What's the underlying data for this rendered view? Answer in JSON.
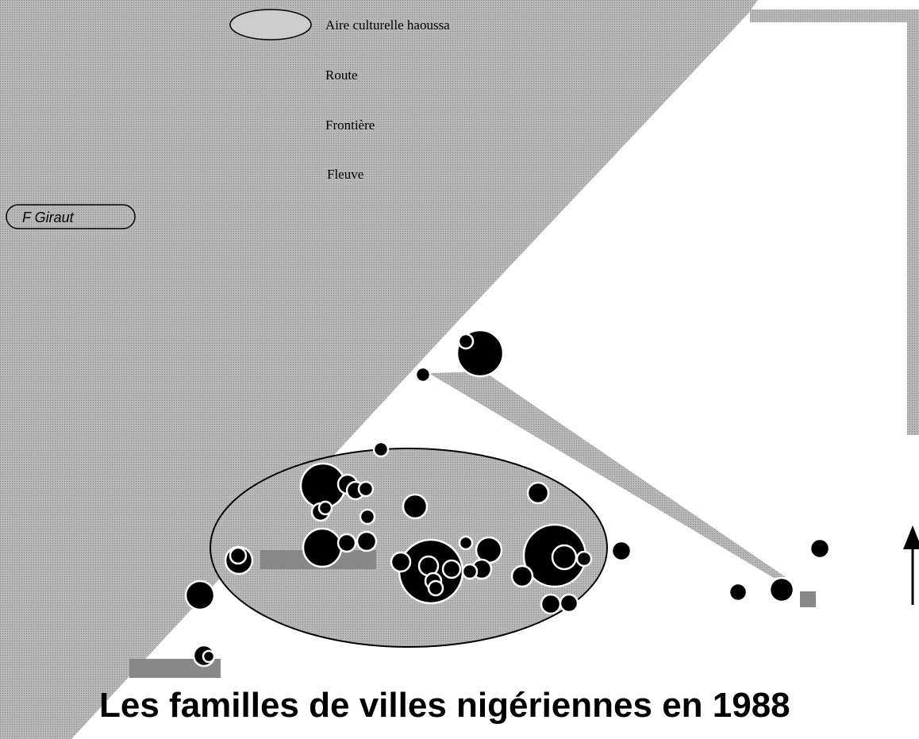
{
  "legend": {
    "items": [
      "Aire culturelle haoussa",
      "Route",
      "Frontière",
      "Fleuve"
    ]
  },
  "credit": "F Giraut",
  "title": "Les familles de villes nigériennes en 1988"
}
